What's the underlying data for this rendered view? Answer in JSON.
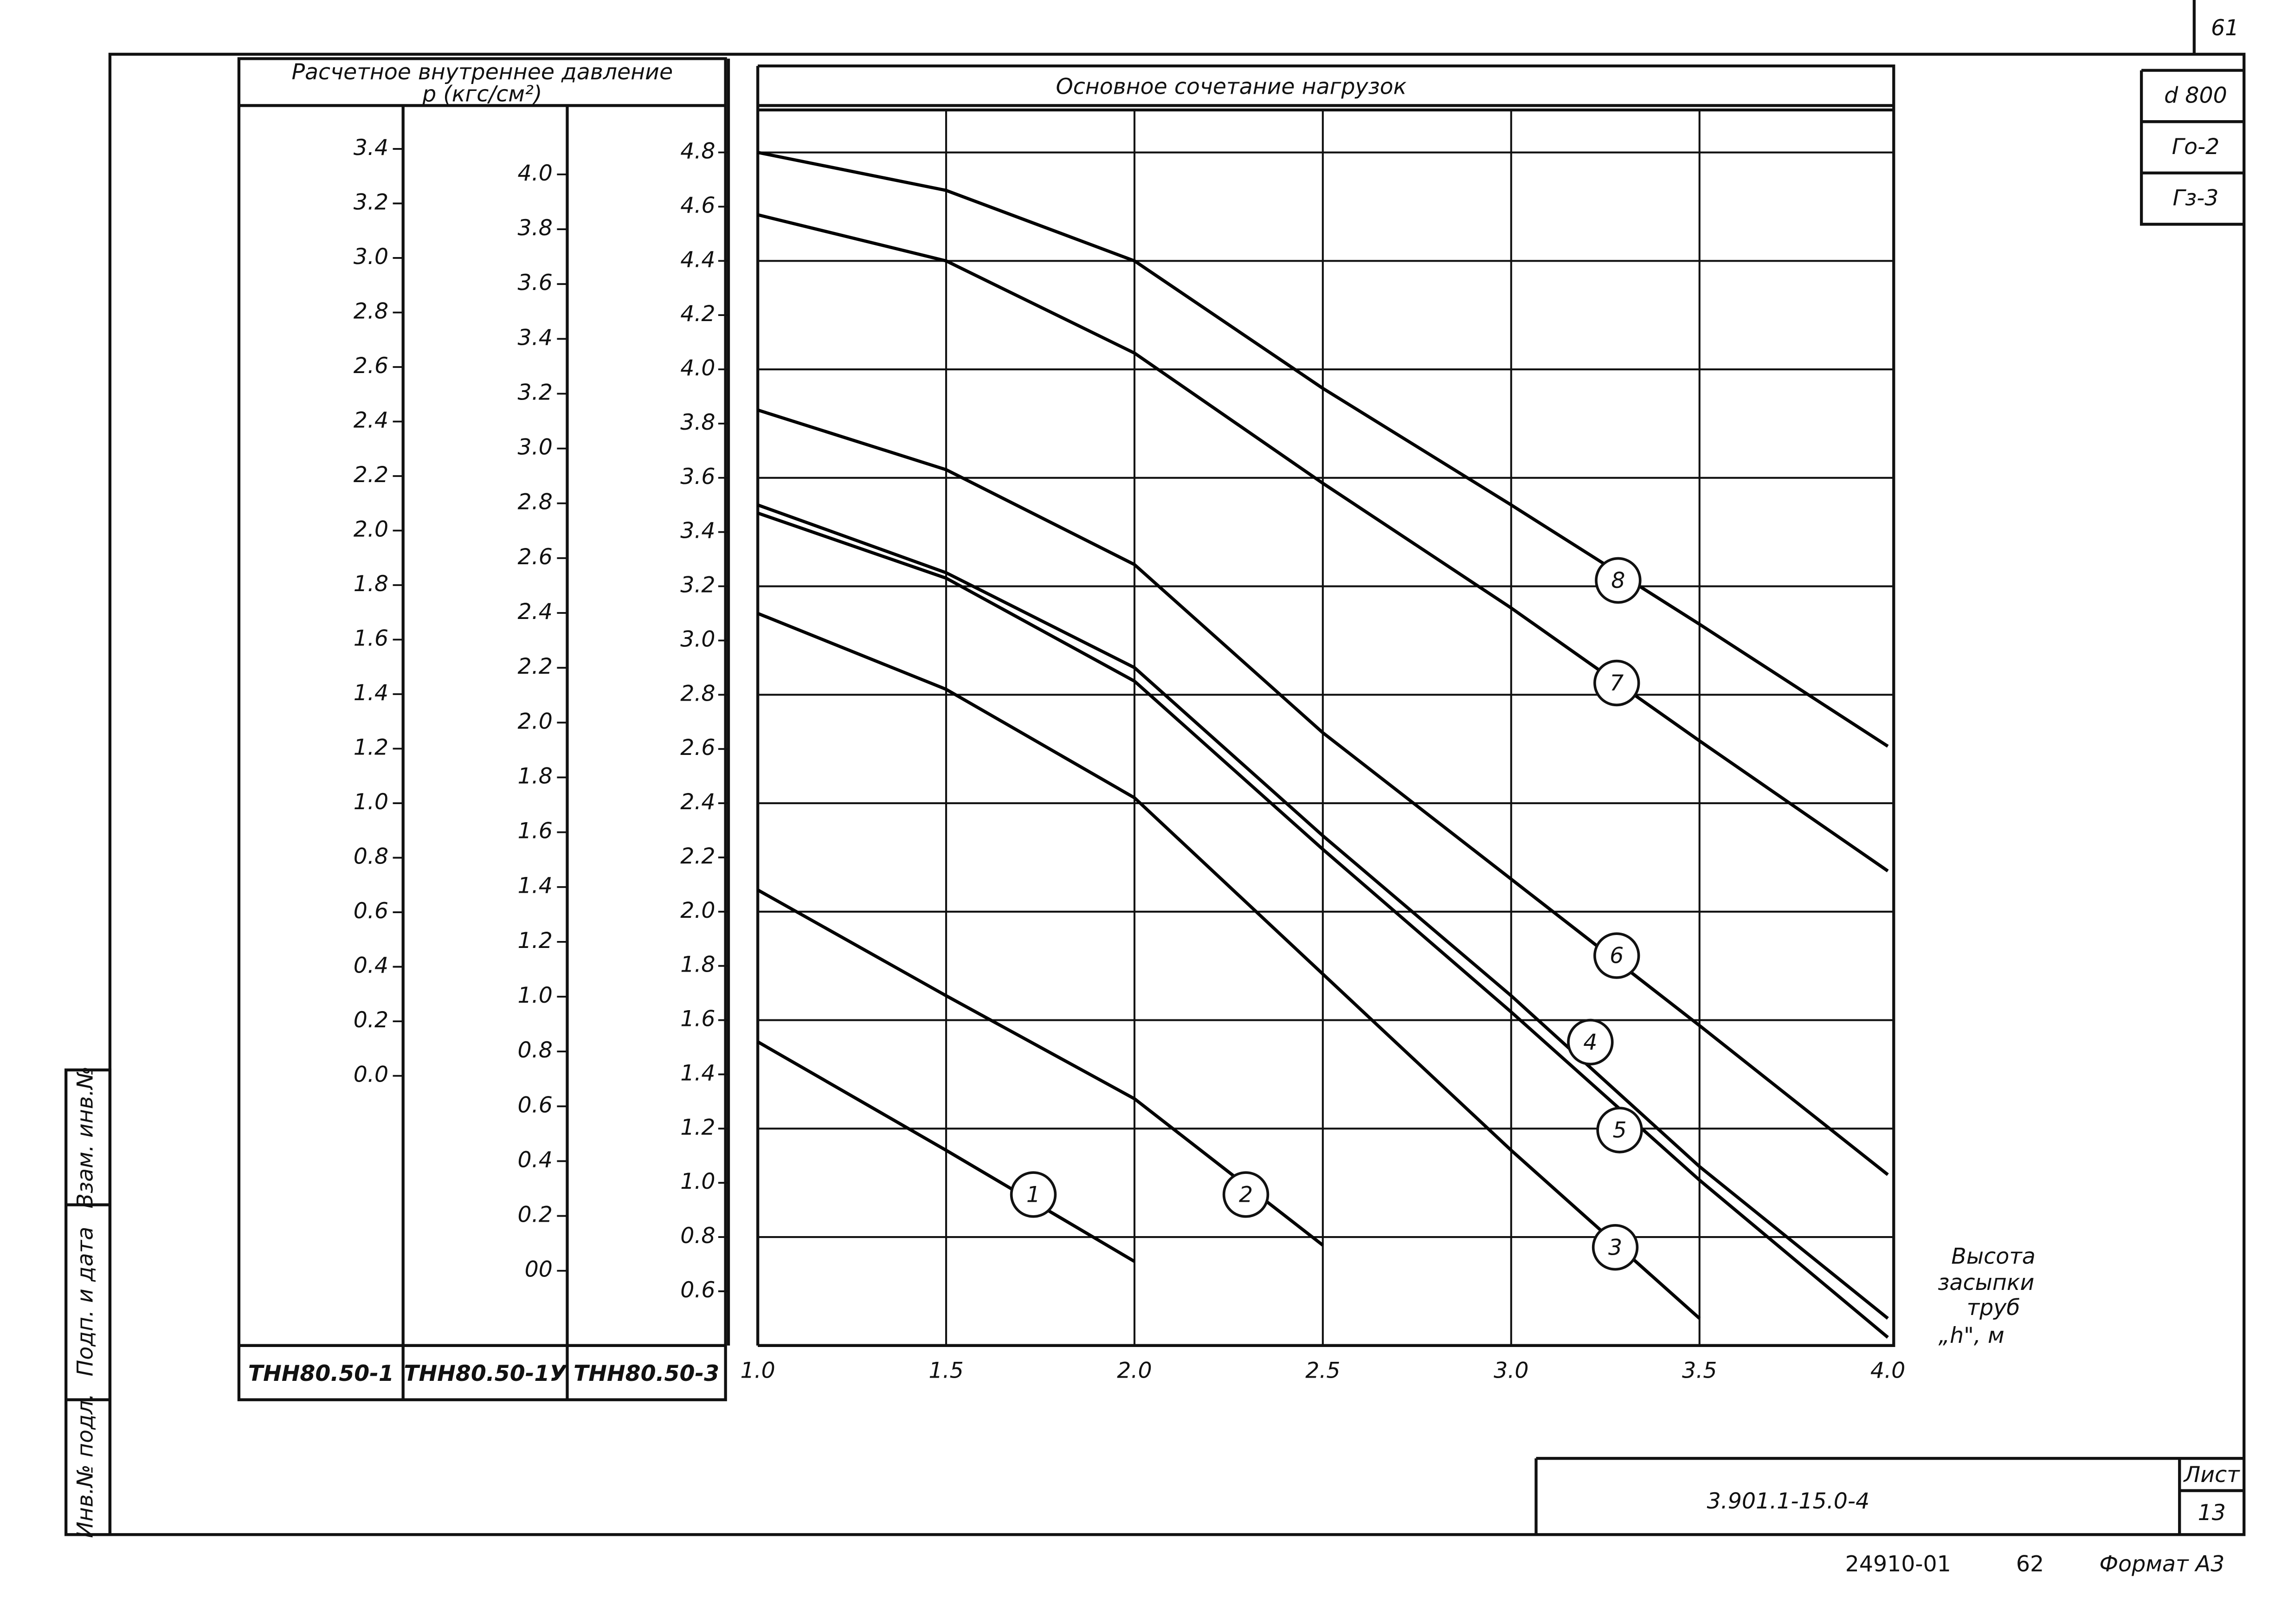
{
  "chart_data": {
    "type": "line",
    "title": "Основное сочетание нагрузок",
    "ylabel": [
      "Расчетное внутреннее давление",
      "р (кгс/см²)"
    ],
    "xlabel": [
      "Высота",
      "засыпки",
      "труб",
      "„h\", м"
    ],
    "y_axis_caption": "ТНН80.50-3",
    "x": [
      1.0,
      1.5,
      2.0,
      2.5,
      3.0,
      3.5,
      4.0
    ],
    "xlim": [
      1.0,
      4.0
    ],
    "xticks": [
      {
        "value": 1,
        "label": "1.0"
      },
      1.5,
      {
        "value": 2,
        "label": "2.0"
      },
      2.5,
      {
        "value": 3,
        "label": "3.0"
      },
      3.5,
      {
        "value": 4,
        "label": "4.0"
      }
    ],
    "ylim": [
      0.4,
      4.95
    ],
    "yticks": [
      4.8,
      4.6,
      4.4,
      4.2,
      {
        "value": 4,
        "label": "4.0"
      },
      3.8,
      3.6,
      3.4,
      3.2,
      {
        "value": 3,
        "label": "3.0"
      },
      2.8,
      2.6,
      2.4,
      2.2,
      {
        "value": 2,
        "label": "2.0"
      },
      1.8,
      1.6,
      1.4,
      1.2,
      {
        "value": 1,
        "label": "1.0"
      },
      0.8,
      0.6
    ],
    "grid": true,
    "series": [
      {
        "name": "1",
        "color": "#000000",
        "values": [
          1.52,
          1.12,
          0.71,
          null,
          null,
          null,
          null
        ]
      },
      {
        "name": "2",
        "color": "#000000",
        "values": [
          2.08,
          1.69,
          1.31,
          0.77,
          null,
          null,
          null
        ]
      },
      {
        "name": "3",
        "color": "#000000",
        "values": [
          3.1,
          2.82,
          2.42,
          1.77,
          1.12,
          0.5,
          null
        ]
      },
      {
        "name": "4",
        "color": "#000000",
        "values": [
          3.5,
          3.25,
          2.9,
          2.28,
          1.69,
          1.06,
          0.5
        ]
      },
      {
        "name": "5",
        "color": "#000000",
        "values": [
          3.47,
          3.23,
          2.85,
          2.23,
          1.63,
          1.01,
          0.43
        ]
      },
      {
        "name": "6",
        "color": "#000000",
        "values": [
          3.85,
          3.63,
          3.28,
          2.66,
          2.12,
          1.58,
          1.03
        ]
      },
      {
        "name": "7",
        "color": "#000000",
        "values": [
          4.57,
          4.4,
          4.06,
          3.58,
          3.12,
          2.63,
          2.15
        ]
      },
      {
        "name": "8",
        "color": "#000000",
        "values": [
          4.8,
          4.66,
          4.4,
          3.93,
          3.5,
          3.06,
          2.61
        ]
      }
    ]
  },
  "pressure_scales": [
    {
      "caption": "ТНН80.50-1",
      "ticks": [
        3.4,
        3.2,
        {
          "value": 3,
          "label": "3.0"
        },
        2.8,
        2.6,
        2.4,
        2.2,
        {
          "value": 2,
          "label": "2.0"
        },
        1.8,
        1.6,
        1.4,
        1.2,
        {
          "value": 1,
          "label": "1.0"
        },
        0.8,
        0.6,
        0.4,
        0.2,
        {
          "value": 0,
          "label": "0.0"
        }
      ]
    },
    {
      "caption": "ТНН80.50-1У",
      "ticks": [
        {
          "value": 4,
          "label": "4.0"
        },
        3.8,
        3.6,
        3.4,
        3.2,
        {
          "value": 3,
          "label": "3.0"
        },
        2.8,
        2.6,
        2.4,
        2.2,
        {
          "value": 2,
          "label": "2.0"
        },
        1.8,
        1.6,
        1.4,
        1.2,
        {
          "value": 1,
          "label": "1.0"
        },
        0.8,
        0.6,
        0.4,
        0.2,
        {
          "value": 0,
          "label": "00"
        }
      ]
    }
  ],
  "sheet": {
    "corner_number": "61",
    "diameter": "d 800",
    "g0": "Го-2",
    "g3": "Гз-3",
    "code": "3.901.1-15.0-4",
    "sheet_label": "Лист",
    "sheet_number": "13",
    "archive": "24910-01",
    "page": "62",
    "format": "Формат А3",
    "stamp": [
      "Инв.№ подл.",
      "Подп. и дата",
      "Взам. инв.№"
    ]
  }
}
